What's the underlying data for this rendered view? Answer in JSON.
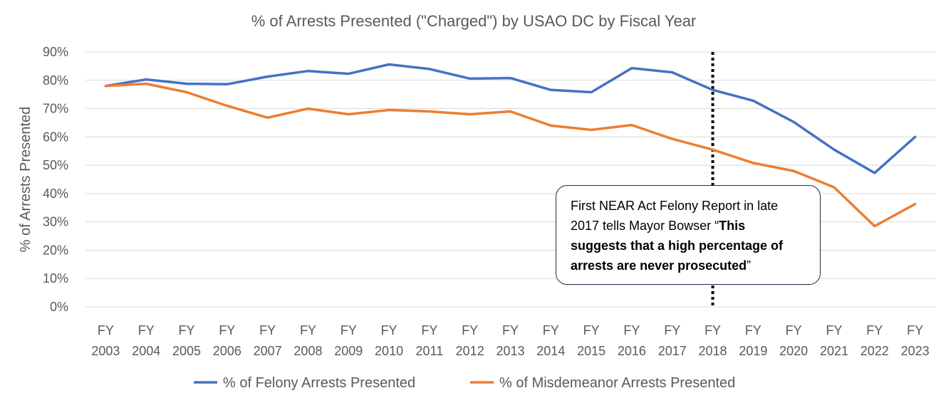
{
  "chart_data": {
    "type": "line",
    "title": "% of Arrests Presented (\"Charged\") by USAO DC by Fiscal Year",
    "ylabel": "% of Arrests Presented",
    "xlabel": "",
    "ylim": [
      0,
      90
    ],
    "yticks": [
      "0%",
      "10%",
      "20%",
      "30%",
      "40%",
      "50%",
      "60%",
      "70%",
      "80%",
      "90%"
    ],
    "categories": [
      [
        "FY",
        "2003"
      ],
      [
        "FY",
        "2004"
      ],
      [
        "FY",
        "2005"
      ],
      [
        "FY",
        "2006"
      ],
      [
        "FY",
        "2007"
      ],
      [
        "FY",
        "2008"
      ],
      [
        "FY",
        "2009"
      ],
      [
        "FY",
        "2010"
      ],
      [
        "FY",
        "2011"
      ],
      [
        "FY",
        "2012"
      ],
      [
        "FY",
        "2013"
      ],
      [
        "FY",
        "2014"
      ],
      [
        "FY",
        "2015"
      ],
      [
        "FY",
        "2016"
      ],
      [
        "FY",
        "2017"
      ],
      [
        "FY",
        "2018"
      ],
      [
        "FY",
        "2019"
      ],
      [
        "FY",
        "2020"
      ],
      [
        "FY",
        "2021"
      ],
      [
        "FY",
        "2022"
      ],
      [
        "FY",
        "2023"
      ]
    ],
    "series": [
      {
        "name": "% of Felony Arrests Presented",
        "color": "#4472c4",
        "values": [
          78,
          80.3,
          78.8,
          78.6,
          81.3,
          83.3,
          82.3,
          85.6,
          84,
          80.6,
          80.8,
          76.6,
          75.8,
          84.3,
          82.8,
          76.6,
          72.8,
          65.3,
          55.5,
          47.3,
          60
        ]
      },
      {
        "name": "% of Misdemeanor Arrests Presented",
        "color": "#ed7d31",
        "values": [
          78,
          78.8,
          75.8,
          71,
          66.8,
          70,
          68,
          69.5,
          69,
          68,
          69,
          64,
          62.5,
          64.2,
          59.3,
          55.5,
          50.8,
          48,
          42.2,
          28.5,
          36.3
        ]
      }
    ],
    "marker_line": {
      "category_index": 15,
      "style": "dotted"
    },
    "legend": "bottom",
    "grid": true,
    "annotation": {
      "line1": "First NEAR Act Felony Report in late",
      "line2_plain": "2017 tells Mayor Bowser “",
      "line2_bold": "This",
      "line3_bold": "suggests that a high percentage of",
      "line4_bold": "arrests are never prosecuted",
      "line4_plain": "”"
    }
  }
}
